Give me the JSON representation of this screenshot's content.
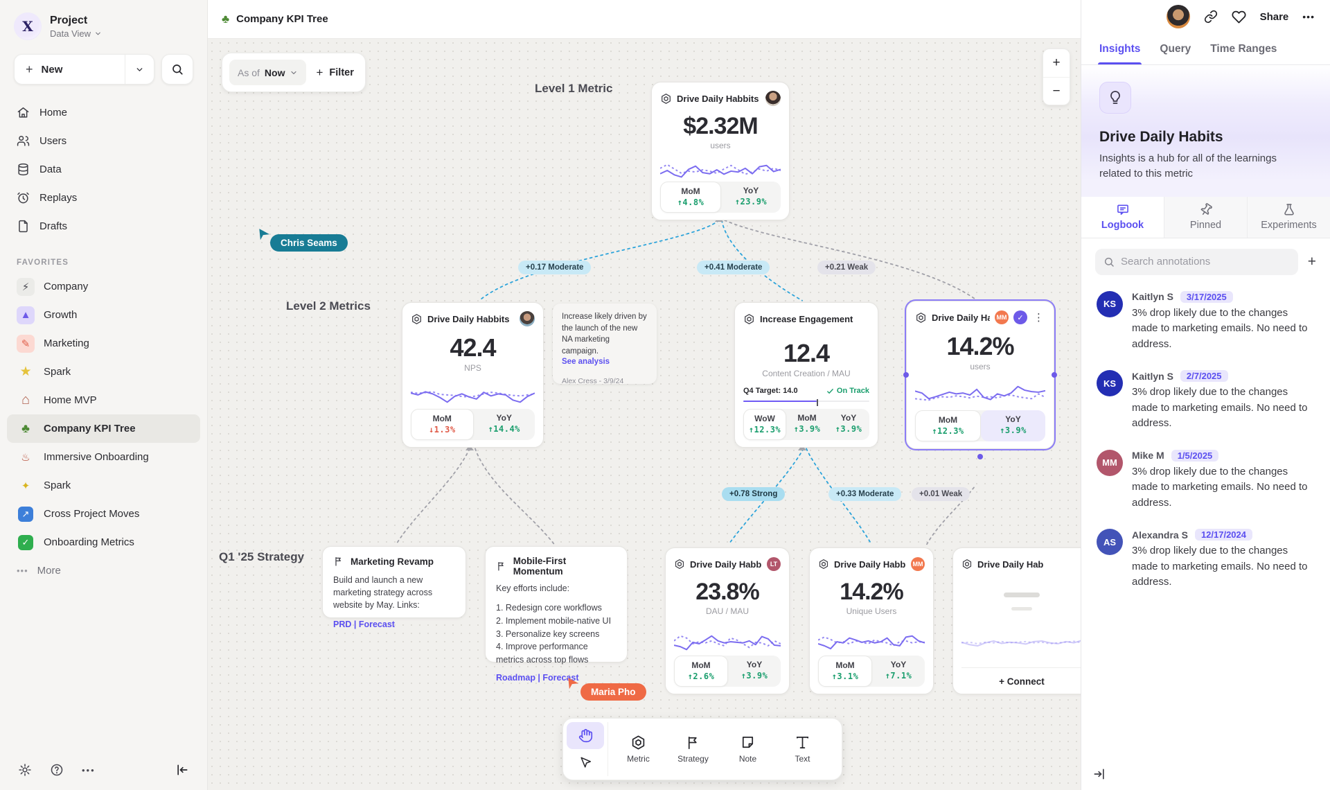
{
  "icons": {
    "plus": "+",
    "minus": "−",
    "ellipsis": "•••",
    "kebab": "⋮",
    "help": "?",
    "check_glyph": "✓"
  },
  "sidebar": {
    "project_name": "Project",
    "workspace": "Data View",
    "new_label": "New",
    "nav": [
      {
        "label": "Home"
      },
      {
        "label": "Users"
      },
      {
        "label": "Data"
      },
      {
        "label": "Replays"
      },
      {
        "label": "Drafts"
      }
    ],
    "favorites_label": "FAVORITES",
    "favorites": [
      {
        "label": "Company",
        "glyph": "⚡",
        "bg": "#ebebe8",
        "fg": "#4a4a52"
      },
      {
        "label": "Growth",
        "glyph": "▲",
        "bg": "#ded7fb",
        "fg": "#6d5ae8"
      },
      {
        "label": "Marketing",
        "glyph": "✎",
        "bg": "#fcd9d2",
        "fg": "#e0604c"
      },
      {
        "label": "Spark",
        "glyph": "★",
        "bg": "transparent",
        "fg": "#e5c33c"
      },
      {
        "label": "Home MVP",
        "glyph": "⌂",
        "bg": "transparent",
        "fg": "#b0614f"
      },
      {
        "label": "Company KPI Tree",
        "glyph": "♣",
        "bg": "transparent",
        "fg": "#4e8a35"
      },
      {
        "label": "Immersive Onboarding",
        "glyph": "♨",
        "bg": "transparent",
        "fg": "#b4452f"
      },
      {
        "label": "Spark",
        "glyph": "✦",
        "bg": "transparent",
        "fg": "#d9b520"
      },
      {
        "label": "Cross Project Moves",
        "glyph": "↗",
        "bg": "#3d7fd9",
        "fg": "#ffffff"
      },
      {
        "label": "Onboarding Metrics",
        "glyph": "✓",
        "bg": "#2fae4e",
        "fg": "#ffffff"
      }
    ],
    "more_label": "More"
  },
  "header": {
    "tree_glyph": "♣",
    "title": "Company KPI Tree",
    "share_label": "Share"
  },
  "canvas": {
    "asof_label": "As of",
    "asof_value": "Now",
    "filter_label": "Filter",
    "labels": {
      "level1": "Level 1 Metric",
      "level2": "Level 2 Metrics",
      "q1": "Q1 '25 Strategy"
    },
    "connectors": [
      {
        "label": "+0.17 Moderate",
        "strength": "moderate"
      },
      {
        "label": "+0.41 Moderate",
        "strength": "moderate"
      },
      {
        "label": "+0.21 Weak",
        "strength": "weak"
      },
      {
        "label": "+0.78 Strong",
        "strength": "strong"
      },
      {
        "label": "+0.33 Moderate",
        "strength": "moderate"
      },
      {
        "label": "+0.01 Weak",
        "strength": "weak"
      }
    ],
    "level1_card": {
      "title": "Drive Daily Habbits",
      "value": "$2.32M",
      "unit": "users",
      "mom_label": "MoM",
      "mom_value": "↑4.8%",
      "yoy_label": "YoY",
      "yoy_value": "↑23.9%",
      "spark": {
        "solid": [
          30,
          45,
          25,
          15,
          50,
          65,
          35,
          30,
          48,
          28,
          42,
          38,
          55,
          30,
          62,
          68,
          40,
          50
        ],
        "dotted": [
          55,
          72,
          52,
          32,
          42,
          38,
          48,
          42,
          32,
          52,
          68,
          48,
          28,
          38,
          52,
          42,
          55,
          45
        ]
      }
    },
    "note_card": {
      "text": "Increase likely driven by the launch of the new NA marketing campaign.",
      "link_label": "See analysis",
      "byline": "Alex Cress - 3/9/24"
    },
    "card_nps": {
      "title": "Drive Daily Habbits",
      "value": "42.4",
      "unit": "NPS",
      "mom_label": "MoM",
      "mom_value": "↓1.3%",
      "yoy_label": "YoY",
      "yoy_value": "↑14.4%",
      "spark": {
        "solid": [
          55,
          48,
          60,
          52,
          38,
          20,
          42,
          52,
          40,
          32,
          58,
          44,
          52,
          48,
          28,
          20,
          42,
          55
        ],
        "dotted": [
          58,
          54,
          57,
          60,
          50,
          48,
          46,
          42,
          40,
          44,
          52,
          58,
          55,
          50,
          46,
          44,
          48,
          52
        ]
      }
    },
    "card_engagement": {
      "title": "Increase Engagement",
      "value": "12.4",
      "unit": "Content Creation / MAU",
      "target_label": "Q4 Target: 14.0",
      "status_label": "On Track",
      "progress_pct": 58,
      "wow_label": "WoW",
      "wow_value": "↑12.3%",
      "mom_label": "MoM",
      "mom_value": "↑3.9%",
      "yoy_label": "YoY",
      "yoy_value": "↑3.9%"
    },
    "card_selected": {
      "title": "Drive Daily Habb..",
      "badge": "MM",
      "badge_color": "#f2784e",
      "value": "14.2%",
      "unit": "users",
      "mom_label": "MoM",
      "mom_value": "↑12.3%",
      "yoy_label": "YoY",
      "yoy_value": "↑3.9%",
      "spark": {
        "solid": [
          62,
          55,
          35,
          42,
          50,
          58,
          52,
          55,
          48,
          68,
          40,
          32,
          52,
          45,
          55,
          78,
          65,
          60,
          58,
          63
        ],
        "dotted": [
          35,
          32,
          30,
          38,
          42,
          40,
          45,
          42,
          38,
          44,
          40,
          42,
          38,
          45,
          48,
          42,
          38,
          35,
          52,
          40
        ]
      }
    },
    "strategy_marketing": {
      "title": "Marketing Revamp",
      "body": "Build and launch a new marketing strategy across website by May. Links:",
      "links": "PRD | Forecast"
    },
    "strategy_mobile": {
      "title": "Mobile-First Momentum",
      "intro": "Key efforts include:",
      "items": [
        "1.  Redesign core workflows",
        "2.  Implement mobile-native UI",
        "3.  Personalize key screens",
        "4.  Improve performance metrics across top flows"
      ],
      "links": "Roadmap | Forecast"
    },
    "card_dau": {
      "title": "Drive Daily Habbits",
      "badge": "LT",
      "badge_color": "#b2566b",
      "value": "23.8%",
      "unit": "DAU / MAU",
      "mom_label": "MoM",
      "mom_value": "↑2.6%",
      "yoy_label": "YoY",
      "yoy_value": "↑3.9%",
      "spark": {
        "solid": [
          30,
          25,
          15,
          40,
          35,
          48,
          62,
          45,
          38,
          42,
          40,
          38,
          45,
          32,
          60,
          52,
          30,
          28
        ],
        "dotted": [
          45,
          62,
          55,
          35,
          42,
          38,
          45,
          35,
          28,
          55,
          48,
          35,
          22,
          40,
          38,
          28,
          45,
          35
        ]
      }
    },
    "card_unique": {
      "title": "Drive Daily Habbits",
      "badge": "MM",
      "badge_color": "#f2784e",
      "value": "14.2%",
      "unit": "Unique Users",
      "mom_label": "MoM",
      "mom_value": "↑3.1%",
      "yoy_label": "YoY",
      "yoy_value": "↑7.1%",
      "spark": {
        "solid": [
          35,
          28,
          18,
          42,
          38,
          55,
          48,
          40,
          45,
          38,
          42,
          55,
          32,
          28,
          58,
          62,
          45,
          38
        ],
        "dotted": [
          48,
          58,
          50,
          38,
          42,
          35,
          45,
          40,
          35,
          48,
          42,
          38,
          28,
          42,
          45,
          38,
          42,
          40
        ]
      }
    },
    "card_ghost": {
      "title": "Drive Daily Hab",
      "connect_label": "+ Connect",
      "spark": {
        "solid": [
          40,
          32,
          28,
          38,
          44,
          36,
          40,
          38,
          34,
          42,
          44,
          38,
          35,
          42,
          38,
          46
        ],
        "dotted": [
          38,
          40,
          35,
          40,
          38,
          42,
          38,
          40,
          42,
          38,
          40,
          35,
          38,
          40,
          43,
          38
        ]
      }
    },
    "cursors": [
      {
        "name": "Chris Seams",
        "color": "#187c95"
      },
      {
        "name": "Maria Pho",
        "color": "#ef6a45"
      }
    ],
    "toolbar": {
      "tools": [
        {
          "label": "Metric"
        },
        {
          "label": "Strategy"
        },
        {
          "label": "Note"
        },
        {
          "label": "Text"
        }
      ]
    }
  },
  "insights": {
    "tabs": [
      {
        "label": "Insights"
      },
      {
        "label": "Query"
      },
      {
        "label": "Time Ranges"
      }
    ],
    "hero": {
      "title": "Drive Daily Habits",
      "description": "Insights is a hub for all of the learnings related to this metric"
    },
    "subtabs": [
      {
        "label": "Logbook"
      },
      {
        "label": "Pinned"
      },
      {
        "label": "Experiments"
      }
    ],
    "search_placeholder": "Search annotations",
    "annotations": [
      {
        "initials": "KS",
        "name": "Kaitlyn S",
        "date": "3/17/2025",
        "color": "#232eb3",
        "text": "3% drop likely due to the changes made to marketing emails. No need to address."
      },
      {
        "initials": "KS",
        "name": "Kaitlyn S",
        "date": "2/7/2025",
        "color": "#232eb3",
        "text": "3% drop likely due to the changes made to marketing emails. No need to address."
      },
      {
        "initials": "MM",
        "name": "Mike M",
        "date": "1/5/2025",
        "color": "#b2566b",
        "text": "3% drop likely due to the changes made to marketing emails. No need to address."
      },
      {
        "initials": "AS",
        "name": "Alexandra S",
        "date": "12/17/2024",
        "color": "#4353b8",
        "text": "3% drop likely due to the changes made to marketing emails. No need to address."
      }
    ]
  }
}
